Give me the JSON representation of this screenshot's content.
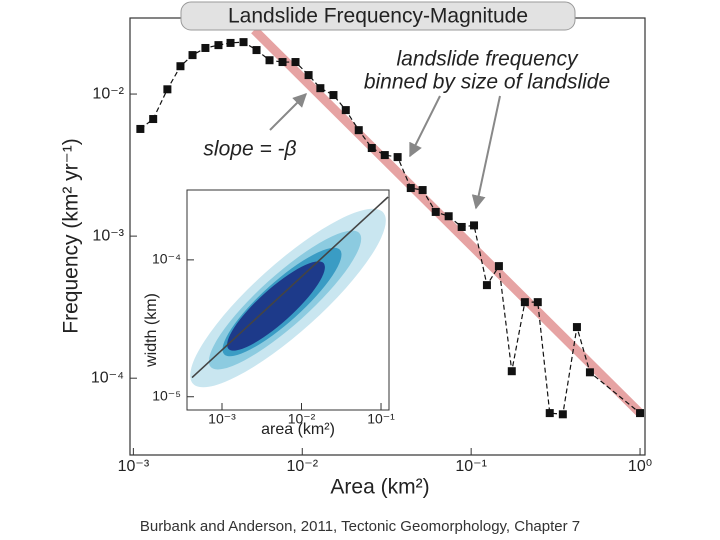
{
  "chart_data": [
    {
      "type": "line",
      "title": "Landslide Frequency-Magnitude",
      "xlabel": "Area (km²)",
      "ylabel": "Frequency (km² yr⁻¹)",
      "annotations": [
        "landslide frequency",
        "binned by size of landslide",
        "slope = -β"
      ],
      "xscale": "log",
      "yscale": "log",
      "xlim": [
        0.000955,
        1.07
      ],
      "ylim": [
        2.88e-05,
        0.0343
      ],
      "xticks": [
        {
          "value": 0.001,
          "label": "10⁻³"
        },
        {
          "value": 0.01,
          "label": "10⁻²"
        },
        {
          "value": 0.1,
          "label": "10⁻¹"
        },
        {
          "value": 1,
          "label": "10⁰"
        }
      ],
      "yticks": [
        {
          "value": 0.0001,
          "label": "10⁻⁴"
        },
        {
          "value": 0.001,
          "label": "10⁻³"
        },
        {
          "value": 0.01,
          "label": "10⁻²"
        }
      ],
      "series": [
        {
          "color": "#111111",
          "x": [
            0.0011,
            0.00131,
            0.00159,
            0.0019,
            0.00224,
            0.00267,
            0.00319,
            0.00376,
            0.00449,
            0.00536,
            0.0064,
            0.00764,
            0.00912,
            0.0109,
            0.0128,
            0.0153,
            0.0181,
            0.0216,
            0.0258,
            0.0308,
            0.0367,
            0.0439,
            0.0516,
            0.0617,
            0.0736,
            0.0879,
            0.104,
            0.124,
            0.146,
            0.174,
            0.208,
            0.248,
            0.292,
            0.349,
            0.423,
            0.505,
            1.0
          ],
          "values": [
            0.00568,
            0.00667,
            0.0108,
            0.0157,
            0.0188,
            0.0211,
            0.0221,
            0.0229,
            0.0232,
            0.0204,
            0.0173,
            0.0168,
            0.0168,
            0.0136,
            0.011,
            0.00984,
            0.00771,
            0.00557,
            0.00417,
            0.00372,
            0.0036,
            0.00218,
            0.00211,
            0.00148,
            0.00138,
            0.00116,
            0.00119,
            0.000452,
            0.000615,
            0.000112,
            0.000343,
            0.000343,
            5.68e-05,
            5.57e-05,
            0.000229,
            0.00011,
            5.68e-05
          ]
        }
      ],
      "fit": {
        "color": "#e6a3a3",
        "x": [
          0.0052,
          1.0
        ],
        "y": [
          0.0282,
          5.68e-05
        ]
      }
    },
    {
      "type": "contour",
      "xlabel": "area (km²)",
      "ylabel": "width (km)",
      "xscale": "log",
      "yscale": "log",
      "xlim": [
        0.000363,
        0.126
      ],
      "ylim": [
        8e-06,
        0.000324
      ],
      "xticks": [
        {
          "value": 0.001,
          "label": "10⁻³"
        },
        {
          "value": 0.01,
          "label": "10⁻²"
        },
        {
          "value": 0.1,
          "label": "10⁻¹"
        }
      ],
      "yticks": [
        {
          "value": 1e-05,
          "label": "10⁻⁵"
        },
        {
          "value": 0.0001,
          "label": "10⁻⁴"
        }
      ],
      "fit": {
        "color": "#444444",
        "x": [
          0.00042,
          0.1225
        ],
        "y": [
          1.38e-05,
          0.000288
        ]
      }
    }
  ],
  "caption": "Burbank and Anderson, 2011, Tectonic Geomorphology, Chapter 7"
}
